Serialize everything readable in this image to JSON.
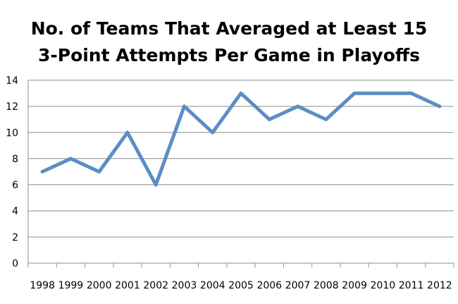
{
  "chart_data": {
    "type": "line",
    "title_lines": [
      "No. of Teams That Averaged at Least 15",
      "3-Point Attempts Per Game in Playoffs"
    ],
    "xlabel": "",
    "ylabel": "",
    "categories": [
      "1998",
      "1999",
      "2000",
      "2001",
      "2002",
      "2003",
      "2004",
      "2005",
      "2006",
      "2007",
      "2008",
      "2009",
      "2010",
      "2011",
      "2012"
    ],
    "series": [
      {
        "values": [
          7,
          8,
          7,
          10,
          6,
          12,
          10,
          13,
          11,
          12,
          11,
          13,
          13,
          13,
          12
        ]
      }
    ],
    "ylim": [
      0,
      14
    ],
    "yticks": [
      0,
      2,
      4,
      6,
      8,
      10,
      12,
      14
    ],
    "grid": true,
    "legend": "none",
    "colors": {
      "line": "#5B8EC6",
      "grid": "#8C8C8C",
      "axis": "#8C8C8C"
    }
  }
}
